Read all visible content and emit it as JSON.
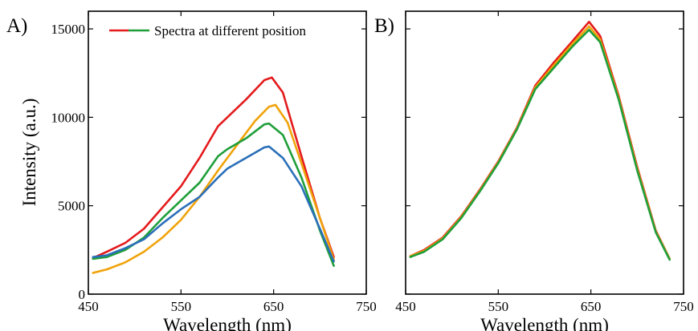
{
  "chart_data": [
    {
      "type": "line",
      "panel_label": "A)",
      "xlabel": "Wavelength (nm)",
      "ylabel": "Intensity (a.u.)",
      "xlim": [
        450,
        750
      ],
      "ylim": [
        0,
        16000
      ],
      "xticks": [
        "450",
        "550",
        "650",
        "750"
      ],
      "yticks": [
        "0",
        "5000",
        "10000",
        "15000"
      ],
      "xtick_values": [
        450,
        550,
        650,
        750
      ],
      "ytick_values": [
        0,
        5000,
        10000,
        15000
      ],
      "legend": {
        "label": "Spectra at different position",
        "placement": "top"
      },
      "grid": false,
      "series": [
        {
          "color": "#e41a1c",
          "x": [
            455,
            470,
            490,
            510,
            530,
            550,
            570,
            590,
            600,
            620,
            640,
            648,
            660,
            680,
            700,
            715
          ],
          "y": [
            2050,
            2400,
            2900,
            3700,
            4900,
            6100,
            7700,
            9500,
            10000,
            11000,
            12100,
            12250,
            11400,
            7800,
            4300,
            2100
          ]
        },
        {
          "color": "#f0a30a",
          "x": [
            455,
            470,
            490,
            510,
            530,
            550,
            570,
            590,
            610,
            630,
            645,
            652,
            665,
            680,
            700,
            715
          ],
          "y": [
            1200,
            1400,
            1800,
            2400,
            3200,
            4200,
            5500,
            7000,
            8400,
            9800,
            10600,
            10700,
            9700,
            7400,
            4300,
            1950
          ]
        },
        {
          "color": "#1f9e3a",
          "x": [
            455,
            470,
            490,
            510,
            530,
            550,
            570,
            590,
            600,
            620,
            640,
            645,
            660,
            680,
            700,
            715
          ],
          "y": [
            2000,
            2100,
            2500,
            3200,
            4300,
            5300,
            6300,
            7800,
            8200,
            8800,
            9600,
            9650,
            9000,
            6600,
            3600,
            1600
          ]
        },
        {
          "color": "#2a6fb8",
          "x": [
            455,
            470,
            490,
            510,
            530,
            550,
            570,
            590,
            600,
            620,
            640,
            645,
            660,
            680,
            700,
            715
          ],
          "y": [
            2100,
            2200,
            2600,
            3100,
            4000,
            4800,
            5500,
            6600,
            7100,
            7700,
            8300,
            8350,
            7700,
            6100,
            3700,
            1850
          ]
        }
      ]
    },
    {
      "type": "line",
      "panel_label": "B)",
      "xlabel": "Wavelength (nm)",
      "xlim": [
        450,
        750
      ],
      "ylim": [
        0,
        16000
      ],
      "xticks": [
        "450",
        "550",
        "650",
        "750"
      ],
      "xtick_values": [
        450,
        550,
        650,
        750
      ],
      "grid": false,
      "series": [
        {
          "color": "#e41a1c",
          "x": [
            455,
            470,
            490,
            510,
            530,
            550,
            570,
            590,
            610,
            630,
            648,
            660,
            680,
            700,
            720,
            735
          ],
          "y": [
            2150,
            2500,
            3200,
            4400,
            5900,
            7500,
            9400,
            11800,
            13100,
            14300,
            15400,
            14600,
            11200,
            7200,
            3600,
            2000
          ]
        },
        {
          "color": "#f0a30a",
          "x": [
            455,
            470,
            490,
            510,
            530,
            550,
            570,
            590,
            610,
            630,
            648,
            660,
            680,
            700,
            720,
            735
          ],
          "y": [
            2150,
            2450,
            3150,
            4350,
            5850,
            7450,
            9350,
            11700,
            12950,
            14150,
            15150,
            14400,
            11100,
            7100,
            3550,
            2000
          ]
        },
        {
          "color": "#1f9e3a",
          "x": [
            455,
            470,
            490,
            510,
            530,
            550,
            570,
            590,
            610,
            630,
            648,
            660,
            680,
            700,
            720,
            735
          ],
          "y": [
            2100,
            2400,
            3100,
            4300,
            5800,
            7400,
            9300,
            11600,
            12800,
            14000,
            14950,
            14250,
            11000,
            7000,
            3500,
            1950
          ]
        }
      ]
    }
  ]
}
